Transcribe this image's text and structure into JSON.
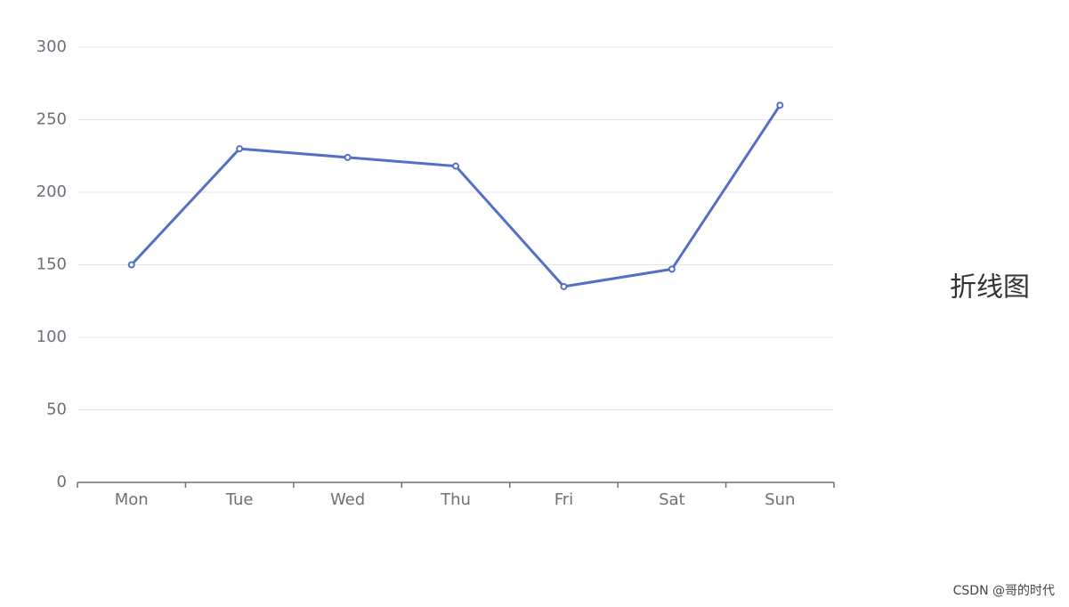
{
  "chart_data": {
    "type": "line",
    "categories": [
      "Mon",
      "Tue",
      "Wed",
      "Thu",
      "Fri",
      "Sat",
      "Sun"
    ],
    "series": [
      {
        "name": null,
        "color": "#5470c6",
        "values": [
          150,
          230,
          224,
          218,
          135,
          147,
          260
        ]
      }
    ],
    "ylim": [
      0,
      300
    ],
    "yticks": [
      0,
      50,
      100,
      150,
      200,
      250,
      300
    ],
    "grid": true,
    "annotations": [
      "折线图"
    ],
    "watermark": "CSDN @哥的时代"
  }
}
